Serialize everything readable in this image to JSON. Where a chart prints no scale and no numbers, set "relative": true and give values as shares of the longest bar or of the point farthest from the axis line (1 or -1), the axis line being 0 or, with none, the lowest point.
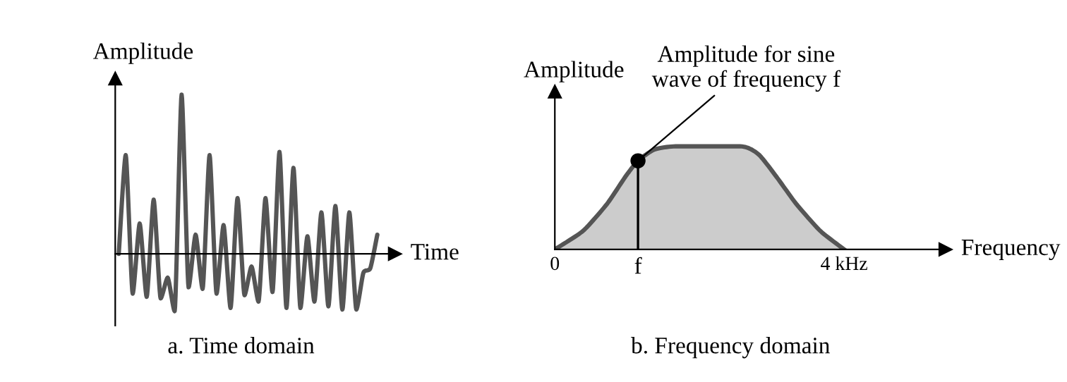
{
  "chart_data": [
    {
      "type": "line",
      "title": "a. Time domain",
      "xlabel": "Time",
      "ylabel": "Amplitude",
      "relative": true,
      "grid": false,
      "legend": false,
      "tick_labels": false,
      "line_style": "solid",
      "marker": "none",
      "categories": [
        null,
        null,
        null,
        null,
        null,
        null,
        null,
        null,
        null,
        null,
        null,
        null,
        null,
        null,
        null,
        null,
        null,
        null,
        null,
        null,
        null,
        null,
        null,
        null,
        null,
        null,
        null,
        null,
        null,
        null,
        null,
        null,
        null,
        null,
        null,
        null,
        null,
        null
      ],
      "series": [
        {
          "color": "#555555",
          "values": [
            0,
            0.62,
            -0.25,
            0.19,
            -0.27,
            0.34,
            -0.28,
            -0.15,
            -0.36,
            1.0,
            -0.21,
            0.12,
            -0.22,
            0.62,
            -0.25,
            0.18,
            -0.34,
            0.35,
            -0.26,
            -0.08,
            -0.3,
            0.35,
            -0.24,
            0.64,
            -0.34,
            0.54,
            -0.34,
            0.11,
            -0.3,
            0.26,
            -0.33,
            0.3,
            -0.35,
            0.26,
            -0.35,
            -0.12,
            -0.09,
            0.12
          ]
        }
      ]
    },
    {
      "type": "area",
      "title": "b. Frequency domain",
      "xlabel": "Frequency",
      "ylabel": "Amplitude",
      "relative": true,
      "grid": false,
      "legend": false,
      "tick_labels": "x",
      "xlim": [
        0,
        5.4
      ],
      "xticks": [
        0,
        {
          "value": 4,
          "label": "4 kHz"
        }
      ],
      "annotations": [
        {
          "text": "Amplitude for sine\nwave of frequency f",
          "x": 1.15,
          "y": 0.86
        },
        {
          "text": "f",
          "x": 1.15,
          "y": 0
        }
      ],
      "series": [
        {
          "type": "area",
          "color": "#555555",
          "x": [
            0,
            0.39,
            0.72,
            0.98,
            1.15,
            1.38,
            1.7,
            2.56,
            2.82,
            3.08,
            3.34,
            3.67,
            4.0
          ],
          "values": [
            0,
            0.18,
            0.44,
            0.71,
            0.86,
            0.97,
            1,
            1,
            0.92,
            0.69,
            0.44,
            0.18,
            0
          ]
        },
        {
          "type": "lollipop",
          "color": "#000000",
          "marker": "circle",
          "x": [
            1.15
          ],
          "values": [
            0.86
          ]
        }
      ]
    }
  ]
}
